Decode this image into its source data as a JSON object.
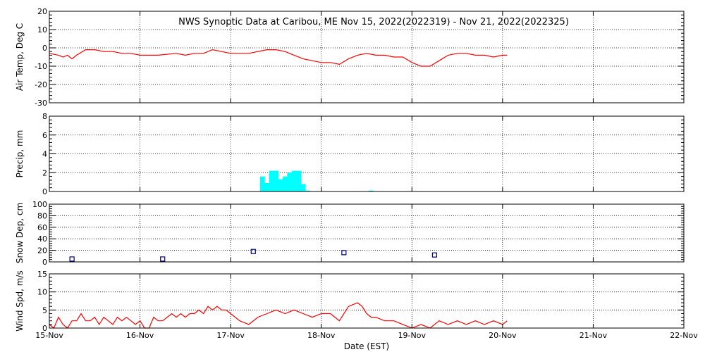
{
  "title": "NWS Synoptic Data at Caribou, ME    Nov 15, 2022(2022319) - Nov 21, 2022(2022325)",
  "x_axis": {
    "label": "Date (EST)",
    "ticks": [
      "15-Nov",
      "16-Nov",
      "17-Nov",
      "18-Nov",
      "19-Nov",
      "20-Nov",
      "21-Nov",
      "22-Nov"
    ]
  },
  "colors": {
    "temp": "#ff0000",
    "precip": "#00ffff",
    "snow": "#000080",
    "wind": "#ff0000"
  },
  "chart_data": [
    {
      "type": "line",
      "title": "NWS Synoptic Data at Caribou, ME    Nov 15, 2022(2022319) - Nov 21, 2022(2022325)",
      "xlabel": "Date (EST)",
      "ylabel": "Air Temp, Deg C",
      "xlim": [
        0,
        7
      ],
      "ylim": [
        -30,
        20
      ],
      "yticks": [
        -30,
        -20,
        -10,
        0,
        10,
        20
      ],
      "grid": true,
      "series": [
        {
          "x": [
            0.0,
            0.1,
            0.15,
            0.2,
            0.25,
            0.3,
            0.4,
            0.5,
            0.6,
            0.7,
            0.8,
            0.9,
            1.0,
            1.2,
            1.4,
            1.5,
            1.6,
            1.7,
            1.8,
            1.9,
            2.0,
            2.1,
            2.2,
            2.4,
            2.5,
            2.6,
            2.7,
            2.8,
            2.9,
            3.0,
            3.1,
            3.2,
            3.3,
            3.4,
            3.5,
            3.6,
            3.7,
            3.8,
            3.9,
            4.0,
            4.1,
            4.2,
            4.3,
            4.4,
            4.5,
            4.6,
            4.7,
            4.8,
            4.9,
            5.0,
            5.05
          ],
          "y": [
            -3,
            -4,
            -5,
            -4,
            -6,
            -4,
            -1,
            -1,
            -2,
            -2,
            -3,
            -3,
            -4,
            -4,
            -3,
            -4,
            -3,
            -3,
            -1,
            -2,
            -3,
            -3,
            -3,
            -1,
            -1,
            -2,
            -4,
            -6,
            -7,
            -8,
            -8,
            -9,
            -6,
            -4,
            -3,
            -4,
            -4,
            -5,
            -5,
            -8,
            -10,
            -10,
            -7,
            -4,
            -3,
            -3,
            -4,
            -4,
            -5,
            -4,
            -4
          ]
        }
      ]
    },
    {
      "type": "bar",
      "ylabel": "Precip, mm",
      "xlim": [
        0,
        7
      ],
      "ylim": [
        0,
        8
      ],
      "yticks": [
        0,
        2,
        4,
        6,
        8
      ],
      "grid": true,
      "series": [
        {
          "x": [
            2.35,
            2.4,
            2.45,
            2.5,
            2.55,
            2.6,
            2.65,
            2.7,
            2.75,
            2.8,
            2.85,
            3.55
          ],
          "y": [
            1.6,
            0.9,
            2.2,
            2.2,
            1.3,
            1.6,
            2.0,
            2.2,
            2.2,
            0.8,
            0.1,
            0.1
          ]
        }
      ]
    },
    {
      "type": "scatter",
      "ylabel": "Snow Dep, cm",
      "xlim": [
        0,
        7
      ],
      "ylim": [
        0,
        100
      ],
      "yticks": [
        0,
        20,
        40,
        60,
        80,
        100
      ],
      "grid": true,
      "series": [
        {
          "x": [
            0.25,
            1.25,
            2.25,
            3.25,
            4.25
          ],
          "y": [
            5,
            5,
            18,
            16,
            12
          ]
        }
      ]
    },
    {
      "type": "line",
      "ylabel": "Wind Spd, m/s",
      "xlim": [
        0,
        7
      ],
      "ylim": [
        0,
        15
      ],
      "yticks": [
        0,
        5,
        10,
        15
      ],
      "grid": true,
      "series": [
        {
          "x": [
            0.0,
            0.05,
            0.1,
            0.15,
            0.2,
            0.25,
            0.3,
            0.35,
            0.4,
            0.45,
            0.5,
            0.55,
            0.6,
            0.65,
            0.7,
            0.75,
            0.8,
            0.85,
            0.9,
            0.95,
            1.0,
            1.05,
            1.1,
            1.15,
            1.2,
            1.25,
            1.3,
            1.35,
            1.4,
            1.45,
            1.5,
            1.55,
            1.6,
            1.65,
            1.7,
            1.75,
            1.8,
            1.85,
            1.9,
            1.95,
            2.0,
            2.1,
            2.2,
            2.3,
            2.4,
            2.5,
            2.6,
            2.7,
            2.8,
            2.9,
            3.0,
            3.1,
            3.2,
            3.3,
            3.4,
            3.45,
            3.5,
            3.55,
            3.6,
            3.7,
            3.8,
            3.9,
            4.0,
            4.1,
            4.2,
            4.3,
            4.4,
            4.5,
            4.6,
            4.7,
            4.8,
            4.9,
            5.0,
            5.05
          ],
          "y": [
            1,
            0,
            3,
            1,
            0,
            2,
            2,
            4,
            2,
            2,
            3,
            1,
            3,
            2,
            1,
            3,
            2,
            3,
            2,
            1,
            2,
            0,
            0,
            3,
            2,
            2,
            3,
            4,
            3,
            4,
            3,
            4,
            4,
            5,
            4,
            6,
            5,
            6,
            5,
            5,
            4,
            2,
            1,
            3,
            4,
            5,
            4,
            5,
            4,
            3,
            4,
            4,
            2,
            6,
            7,
            6,
            4,
            3,
            3,
            2,
            2,
            1,
            0,
            1,
            0,
            2,
            1,
            2,
            1,
            2,
            1,
            2,
            1,
            2
          ]
        }
      ]
    }
  ]
}
